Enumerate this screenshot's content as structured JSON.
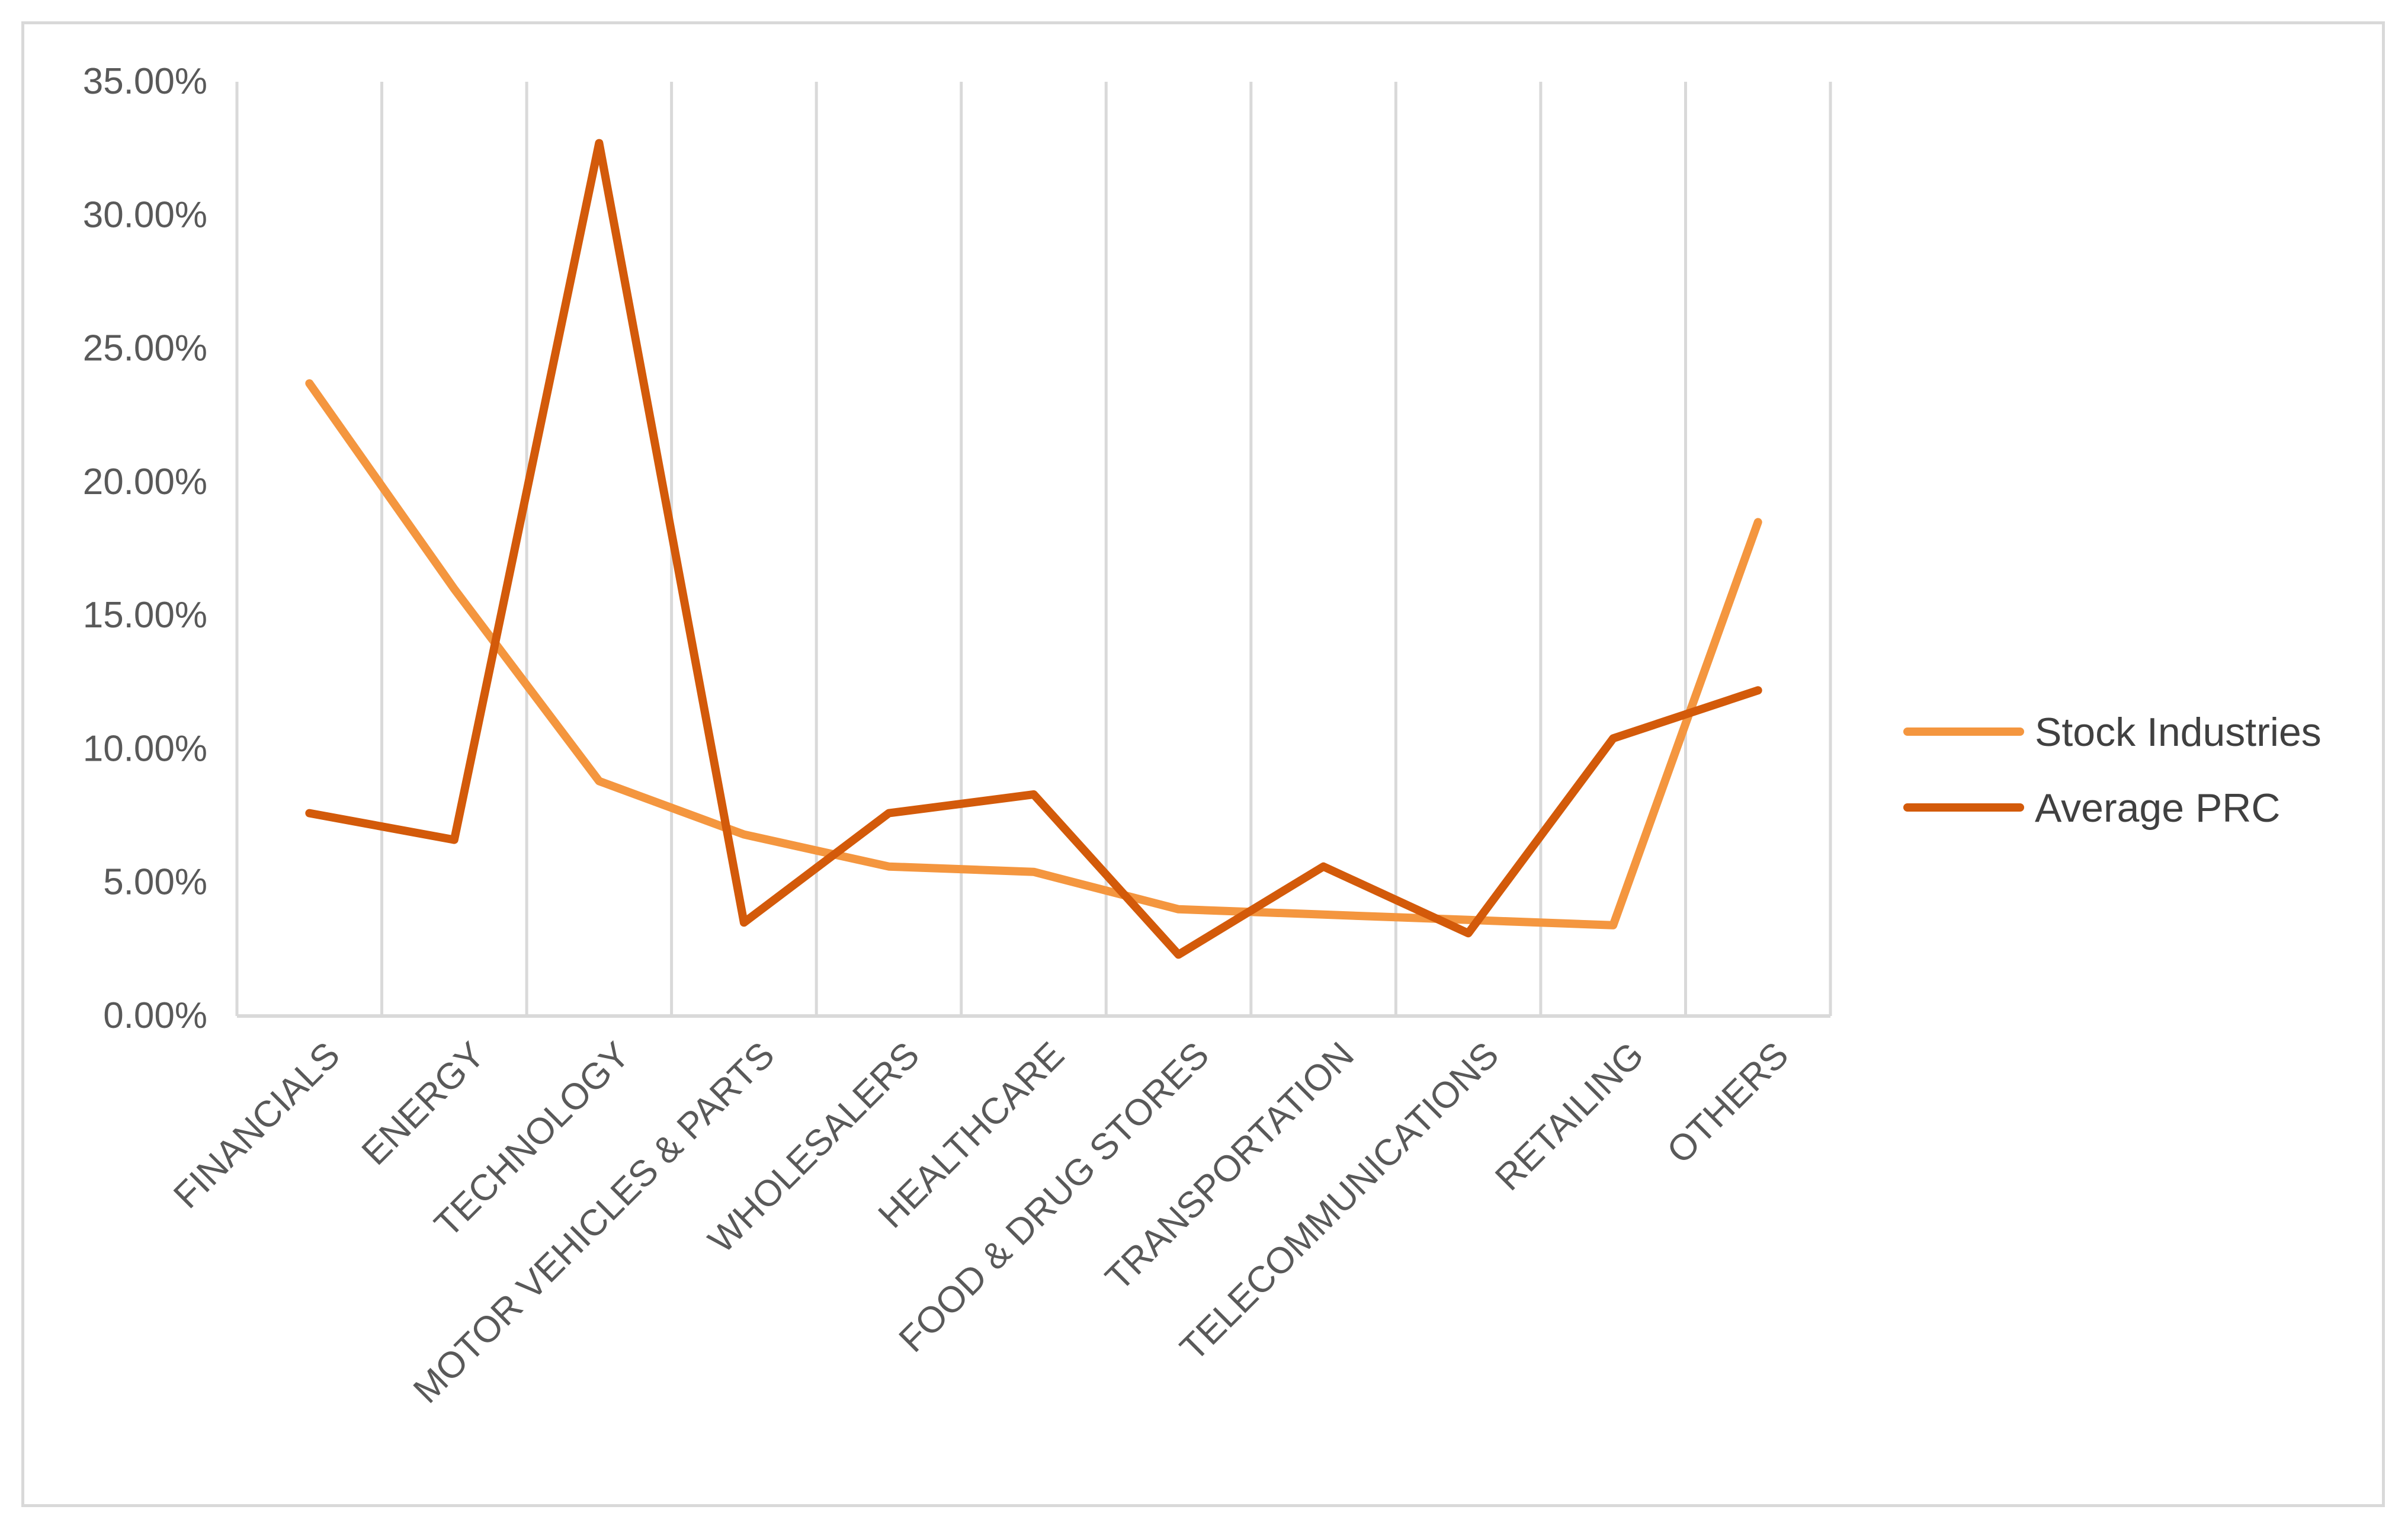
{
  "chart_data": {
    "type": "line",
    "title": "",
    "xlabel": "",
    "ylabel": "",
    "categories": [
      "FINANCIALS",
      "ENERGY",
      "TECHNOLOGY",
      "MOTOR VEHICLES & PARTS",
      "WHOLESALERS",
      "HEALTHCARE",
      "FOOD & DRUG STORES",
      "TRANSPORTATION",
      "TELECOMMUNICATIONS",
      "RETAILING",
      "OTHERS"
    ],
    "ylim": [
      0,
      0.35
    ],
    "yticks": [
      0,
      0.05,
      0.1,
      0.15,
      0.2,
      0.25,
      0.3,
      0.35
    ],
    "ytick_labels": [
      "0.00%",
      "5.00%",
      "10.00%",
      "15.00%",
      "20.00%",
      "25.00%",
      "30.00%",
      "35.00%"
    ],
    "grid": "vertical",
    "legend_position": "right",
    "series": [
      {
        "name": "Stock Industries",
        "color": "#f4963f",
        "values": [
          0.237,
          0.16,
          0.088,
          0.068,
          0.056,
          0.054,
          0.04,
          0.038,
          0.036,
          0.034,
          0.185
        ]
      },
      {
        "name": "Average PRC",
        "color": "#d35a0a",
        "values": [
          0.076,
          0.066,
          0.327,
          0.035,
          0.076,
          0.083,
          0.023,
          0.056,
          0.031,
          0.104,
          0.122
        ]
      }
    ]
  }
}
